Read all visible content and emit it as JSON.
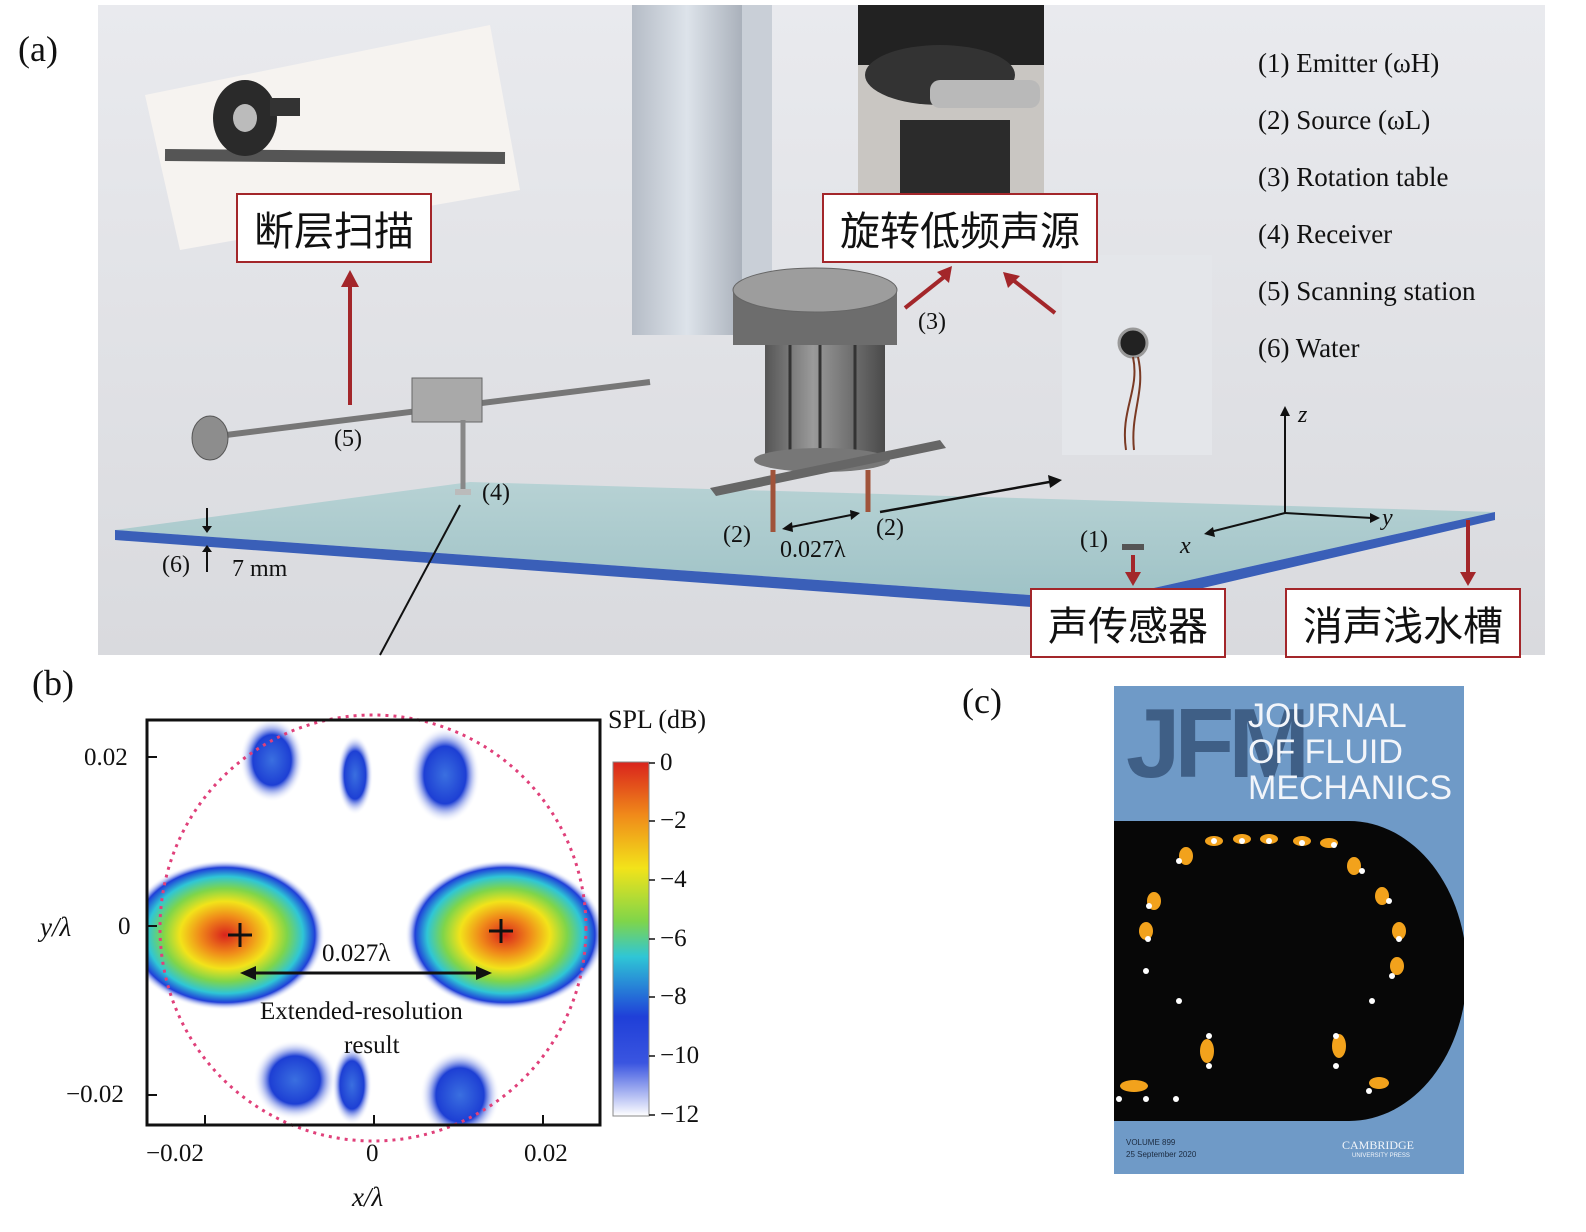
{
  "panels": {
    "a": "(a)",
    "b": "(b)",
    "c": "(c)"
  },
  "legend": [
    {
      "num": "(1)",
      "text": "Emitter (ωH)"
    },
    {
      "num": "(2)",
      "text": "Source (ωL)"
    },
    {
      "num": "(3)",
      "text": "Rotation table"
    },
    {
      "num": "(4)",
      "text": "Receiver"
    },
    {
      "num": "(5)",
      "text": "Scanning station"
    },
    {
      "num": "(6)",
      "text": "Water"
    }
  ],
  "callouts": {
    "scan": "断层扫描",
    "rotating_source": "旋转低频声源",
    "sensor": "声传感器",
    "tank": "消声浅水槽"
  },
  "setup_labels": {
    "l5": "(5)",
    "l4": "(4)",
    "l3": "(3)",
    "l2a": "(2)",
    "l2b": "(2)",
    "l1": "(1)",
    "l6": "(6)",
    "depth": "7 mm",
    "separation": "0.027λ",
    "axis_x": "x",
    "axis_y": "y",
    "axis_z": "z"
  },
  "plot_b": {
    "xlabel": "x/λ",
    "ylabel": "y/λ",
    "xticks": [
      "−0.02",
      "0",
      "0.02"
    ],
    "yticks": [
      "0.02",
      "0",
      "−0.02"
    ],
    "colorbar_title": "SPL (dB)",
    "colorbar_ticks": [
      "0",
      "−2",
      "−4",
      "−6",
      "−8",
      "−10",
      "−12"
    ],
    "separation_label": "0.027λ",
    "annotation_line1": "Extended-resolution",
    "annotation_line2": "result"
  },
  "cover_c": {
    "logo": "JFM",
    "title_line1": "JOURNAL",
    "title_line2": "OF FLUID",
    "title_line3": "MECHANICS",
    "volume": "VOLUME 899",
    "date": "25 September 2020",
    "publisher": "CAMBRIDGE",
    "publisher_sub": "UNIVERSITY PRESS"
  },
  "colors": {
    "callout_red": "#a3262a",
    "water": "#a9c9cc",
    "tank_edge": "#3a5fb8",
    "cover_blue": "#6f9ac7",
    "circle_pink": "#e0407a"
  }
}
